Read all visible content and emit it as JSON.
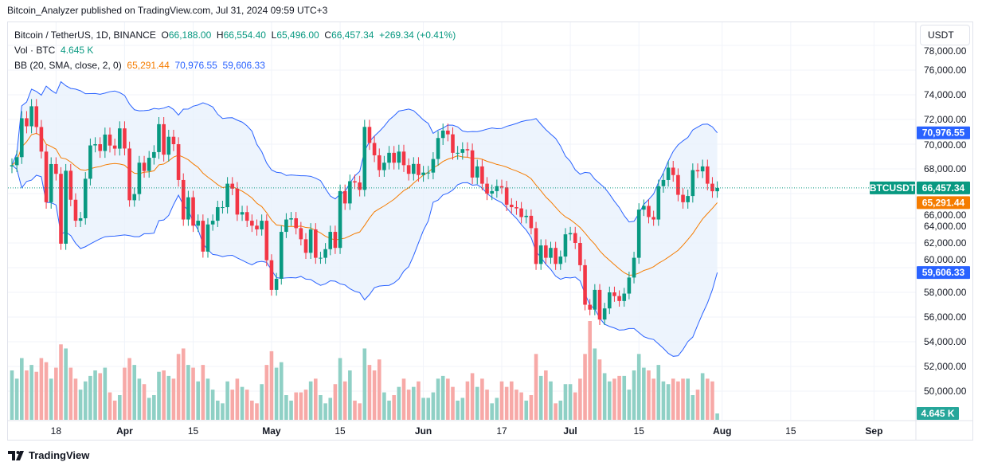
{
  "publisher_line": "Bitcoin_Analyzer published on TradingView.com, Jul 31, 2024 09:59 UTC+3",
  "legend": {
    "symbol": "Bitcoin / TetherUS, 1D, BINANCE",
    "o_label": "O",
    "o": "66,188.00",
    "h_label": "H",
    "h": "66,554.40",
    "l_label": "L",
    "l": "65,496.00",
    "c_label": "C",
    "c": "66,457.34",
    "change": "+269.34 (+0.41%)",
    "vol_label": "Vol · BTC",
    "vol": "4.645 K",
    "bb_label": "BB (20, SMA, close, 2, 0)",
    "bb_basis": "65,291.44",
    "bb_upper": "70,976.55",
    "bb_lower": "59,606.33"
  },
  "currency_button": "USDT",
  "footer_brand": "TradingView",
  "colors": {
    "up": "#089981",
    "down": "#f23645",
    "vol_up": "#8fd0c5",
    "vol_down": "#f7a9a7",
    "basis": "#f57c00",
    "band": "#2962ff",
    "band_fill": "#e9f1fd"
  },
  "chart_data": {
    "type": "candlestick",
    "start_date": "2024-03-09",
    "interval": "1D",
    "ylim": [
      49000,
      78000
    ],
    "y_ticks": [
      "50,000.00",
      "52,000.00",
      "54,000.00",
      "56,000.00",
      "58,000.00",
      "60,000.00",
      "62,000.00",
      "64,000.00",
      "66,000.00",
      "68,000.00",
      "70,000.00",
      "72,000.00",
      "74,000.00",
      "76,000.00",
      "78,000.00"
    ],
    "x_ticks": [
      {
        "label": "18",
        "date": "2024-03-18"
      },
      {
        "label": "Apr",
        "date": "2024-04-01"
      },
      {
        "label": "15",
        "date": "2024-04-15"
      },
      {
        "label": "May",
        "date": "2024-05-01"
      },
      {
        "label": "15",
        "date": "2024-05-15"
      },
      {
        "label": "Jun",
        "date": "2024-06-01"
      },
      {
        "label": "17",
        "date": "2024-06-17"
      },
      {
        "label": "Jul",
        "date": "2024-07-01"
      },
      {
        "label": "15",
        "date": "2024-07-15"
      },
      {
        "label": "Aug",
        "date": "2024-08-01"
      },
      {
        "label": "15",
        "date": "2024-08-15"
      },
      {
        "label": "Sep",
        "date": "2024-09-01"
      }
    ],
    "first_open": 68200,
    "closes": [
      68300,
      68950,
      72100,
      71450,
      73070,
      71390,
      69400,
      65300,
      68390,
      67600,
      61940,
      67850,
      65500,
      63800,
      64000,
      67200,
      69900,
      70000,
      69450,
      70780,
      69890,
      69640,
      71280,
      69650,
      65460,
      65960,
      68500,
      67830,
      68900,
      69360,
      71620,
      69150,
      70600,
      70000,
      67100,
      63900,
      65700,
      63400,
      63800,
      61300,
      63500,
      63800,
      64900,
      64900,
      66800,
      66400,
      64300,
      64500,
      63800,
      63400,
      63100,
      63800,
      60600,
      58200,
      59100,
      62900,
      63900,
      64000,
      63200,
      62300,
      61200,
      63100,
      60800,
      60800,
      61500,
      62900,
      61600,
      66200,
      65200,
      67000,
      66900,
      66300,
      71400,
      70100,
      69100,
      67900,
      68500,
      69300,
      68500,
      69400,
      68300,
      67600,
      68400,
      67500,
      67700,
      67700,
      68800,
      70500,
      71100,
      70800,
      69300,
      69300,
      69600,
      69500,
      67300,
      68200,
      66800,
      66000,
      66200,
      66600,
      66500,
      65100,
      64900,
      64800,
      64100,
      64200,
      63200,
      60300,
      61800,
      60800,
      61600,
      60300,
      60900,
      62700,
      62800,
      62000,
      60200,
      57000,
      56600,
      58200,
      55800,
      56700,
      58000,
      57700,
      57300,
      57900,
      59200,
      60800,
      64700,
      65000,
      64100,
      63900,
      66600,
      67100,
      68100,
      67500,
      65900,
      65300,
      65800,
      67900,
      67800,
      68200,
      66800,
      66188,
      66457.34
    ],
    "volumes_k": [
      36,
      30,
      45,
      36,
      40,
      35,
      45,
      42,
      30,
      38,
      55,
      52,
      38,
      30,
      22,
      28,
      32,
      36,
      34,
      38,
      20,
      14,
      18,
      38,
      45,
      40,
      30,
      26,
      16,
      18,
      35,
      36,
      32,
      30,
      48,
      52,
      40,
      38,
      28,
      40,
      30,
      22,
      14,
      12,
      28,
      22,
      30,
      24,
      22,
      14,
      12,
      26,
      40,
      50,
      38,
      42,
      18,
      14,
      20,
      20,
      22,
      28,
      30,
      18,
      12,
      16,
      26,
      45,
      28,
      36,
      14,
      12,
      52,
      40,
      36,
      44,
      20,
      14,
      18,
      24,
      30,
      22,
      24,
      28,
      16,
      16,
      20,
      30,
      32,
      30,
      24,
      14,
      16,
      28,
      34,
      24,
      30,
      22,
      12,
      16,
      28,
      24,
      28,
      22,
      20,
      14,
      18,
      48,
      32,
      36,
      28,
      12,
      14,
      26,
      26,
      20,
      30,
      48,
      72,
      52,
      44,
      34,
      28,
      30,
      32,
      32,
      22,
      36,
      48,
      38,
      36,
      30,
      40,
      28,
      26,
      30,
      28,
      30,
      30,
      18,
      22,
      34,
      30,
      28,
      4.645
    ],
    "last_price_label": "66,457.34",
    "symbol_tag": "BTCUSDT",
    "bb_period": 20,
    "bb_mult": 2,
    "price_labels": {
      "upper": "70,976.55",
      "basis": "65,291.44",
      "lower": "59,606.33",
      "volume": "4.645 K"
    }
  }
}
